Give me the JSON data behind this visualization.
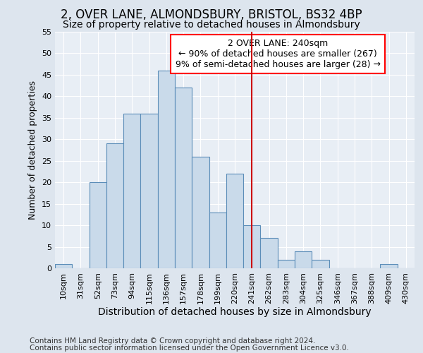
{
  "title": "2, OVER LANE, ALMONDSBURY, BRISTOL, BS32 4BP",
  "subtitle": "Size of property relative to detached houses in Almondsbury",
  "xlabel": "Distribution of detached houses by size in Almondsbury",
  "ylabel": "Number of detached properties",
  "footer1": "Contains HM Land Registry data © Crown copyright and database right 2024.",
  "footer2": "Contains public sector information licensed under the Open Government Licence v3.0.",
  "categories": [
    "10sqm",
    "31sqm",
    "52sqm",
    "73sqm",
    "94sqm",
    "115sqm",
    "136sqm",
    "157sqm",
    "178sqm",
    "199sqm",
    "220sqm",
    "241sqm",
    "262sqm",
    "283sqm",
    "304sqm",
    "325sqm",
    "346sqm",
    "367sqm",
    "388sqm",
    "409sqm",
    "430sqm"
  ],
  "values": [
    1,
    0,
    20,
    29,
    36,
    36,
    46,
    42,
    26,
    13,
    22,
    10,
    7,
    2,
    4,
    2,
    0,
    0,
    0,
    1,
    0
  ],
  "bar_color": "#c9daea",
  "bar_edge_color": "#5b8db8",
  "vline_x": 11,
  "vline_color": "#cc0000",
  "annotation_box_text": "2 OVER LANE: 240sqm\n← 90% of detached houses are smaller (267)\n9% of semi-detached houses are larger (28) →",
  "ylim": [
    0,
    55
  ],
  "yticks": [
    0,
    5,
    10,
    15,
    20,
    25,
    30,
    35,
    40,
    45,
    50,
    55
  ],
  "background_color": "#dde5ee",
  "plot_background_color": "#e8eef5",
  "grid_color": "#ffffff",
  "title_fontsize": 12,
  "subtitle_fontsize": 10,
  "xlabel_fontsize": 10,
  "ylabel_fontsize": 9,
  "tick_fontsize": 8,
  "annotation_fontsize": 9,
  "footer_fontsize": 7.5
}
